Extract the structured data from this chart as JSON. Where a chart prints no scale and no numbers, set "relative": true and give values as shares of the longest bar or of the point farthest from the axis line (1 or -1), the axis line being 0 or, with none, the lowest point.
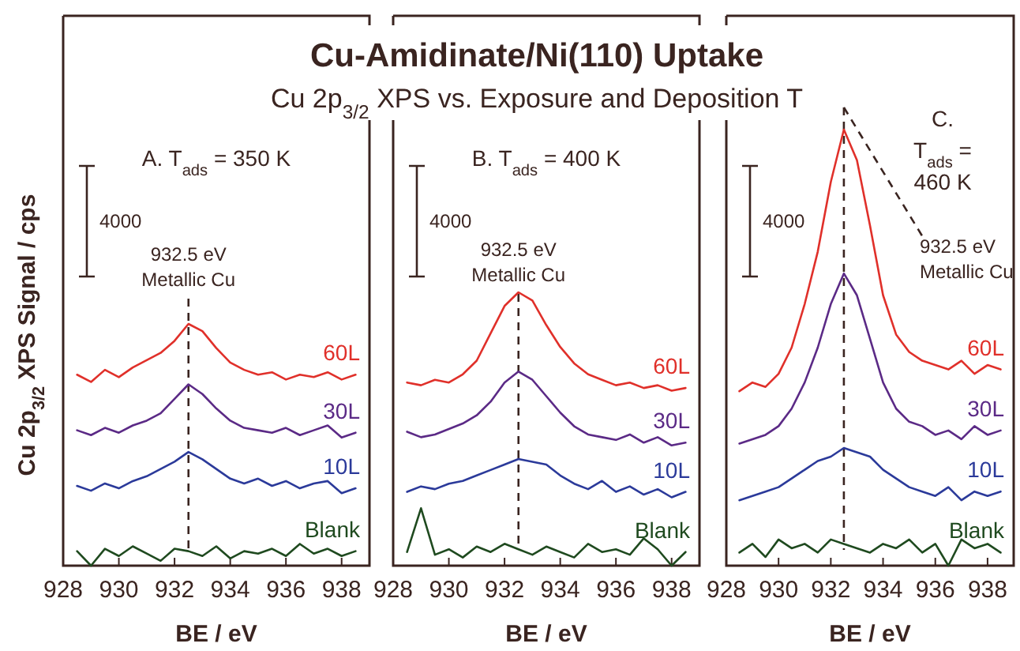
{
  "chart_data": [
    {
      "type": "other",
      "title": "Cu-Amidinate/Ni(110) Uptake",
      "subtitle": "Cu 2p$_{3/2}$ XPS vs. Exposure and Deposition T"
    },
    {
      "type": "line",
      "ylabel": "Cu 2p$_{3/2}$ XPS Signal / cps",
      "xlabel": "BE / eV",
      "relative": true,
      "legend": false,
      "xlim": [
        928,
        939
      ],
      "xticks": [
        928,
        930,
        932,
        934,
        936,
        938
      ],
      "x": [
        928.5,
        929,
        929.5,
        930,
        930.5,
        931,
        931.5,
        932,
        932.5,
        933,
        933.5,
        934,
        934.5,
        935,
        935.5,
        936,
        936.5,
        937,
        937.5,
        938,
        938.5
      ],
      "series": [
        {
          "name": "60L",
          "color": "#e0302a",
          "values": [
            0.79,
            0.76,
            0.81,
            0.78,
            0.82,
            0.85,
            0.88,
            0.93,
            1.0,
            0.97,
            0.9,
            0.84,
            0.81,
            0.79,
            0.8,
            0.77,
            0.79,
            0.78,
            0.8,
            0.77,
            0.79
          ]
        },
        {
          "name": "30L",
          "color": "#5b2a86",
          "values": [
            0.56,
            0.54,
            0.57,
            0.55,
            0.58,
            0.6,
            0.63,
            0.69,
            0.75,
            0.71,
            0.65,
            0.6,
            0.57,
            0.56,
            0.55,
            0.57,
            0.54,
            0.56,
            0.58,
            0.53,
            0.55
          ]
        },
        {
          "name": "10L",
          "color": "#2b3a9a",
          "values": [
            0.33,
            0.31,
            0.34,
            0.32,
            0.35,
            0.37,
            0.4,
            0.43,
            0.47,
            0.44,
            0.4,
            0.36,
            0.34,
            0.36,
            0.33,
            0.35,
            0.32,
            0.34,
            0.35,
            0.3,
            0.32
          ]
        },
        {
          "name": "Blank",
          "color": "#1f4a1f",
          "values": [
            0.06,
            0.0,
            0.07,
            0.04,
            0.08,
            0.05,
            0.02,
            0.07,
            0.06,
            0.04,
            0.08,
            0.03,
            0.06,
            0.05,
            0.07,
            0.04,
            0.09,
            0.05,
            0.07,
            0.04,
            0.06
          ]
        }
      ],
      "ref_lines": [
        {
          "axis": "x",
          "value": 932.5,
          "label": "932.5 eV\nMetallic Cu",
          "line_style": "dashed"
        }
      ],
      "annotations": [
        "A. T$_{ads}$ = 350 K",
        "4000"
      ]
    },
    {
      "type": "line",
      "xlabel": "BE / eV",
      "relative": true,
      "legend": false,
      "xlim": [
        928,
        939
      ],
      "xticks": [
        928,
        930,
        932,
        934,
        936,
        938
      ],
      "x": [
        928.5,
        929,
        929.5,
        930,
        930.5,
        931,
        931.5,
        932,
        932.5,
        933,
        933.5,
        934,
        934.5,
        935,
        935.5,
        936,
        936.5,
        937,
        937.5,
        938,
        938.5
      ],
      "series": [
        {
          "name": "60L",
          "color": "#e0302a",
          "values": [
            0.67,
            0.66,
            0.68,
            0.67,
            0.7,
            0.75,
            0.85,
            0.95,
            1.0,
            0.97,
            0.88,
            0.8,
            0.74,
            0.7,
            0.68,
            0.66,
            0.67,
            0.65,
            0.66,
            0.64,
            0.65
          ]
        },
        {
          "name": "30L",
          "color": "#5b2a86",
          "values": [
            0.49,
            0.47,
            0.48,
            0.5,
            0.52,
            0.55,
            0.6,
            0.67,
            0.71,
            0.68,
            0.62,
            0.56,
            0.51,
            0.48,
            0.47,
            0.46,
            0.48,
            0.45,
            0.47,
            0.44,
            0.45
          ]
        },
        {
          "name": "10L",
          "color": "#2b3a9a",
          "values": [
            0.27,
            0.29,
            0.28,
            0.3,
            0.31,
            0.33,
            0.35,
            0.37,
            0.39,
            0.38,
            0.37,
            0.33,
            0.3,
            0.28,
            0.31,
            0.27,
            0.29,
            0.26,
            0.28,
            0.25,
            0.27
          ]
        },
        {
          "name": "Blank",
          "color": "#1f4a1f",
          "values": [
            0.05,
            0.21,
            0.04,
            0.06,
            0.03,
            0.07,
            0.05,
            0.08,
            0.06,
            0.04,
            0.07,
            0.05,
            0.03,
            0.08,
            0.05,
            0.06,
            0.04,
            0.1,
            0.06,
            0.0,
            0.05
          ]
        }
      ],
      "ref_lines": [
        {
          "axis": "x",
          "value": 932.5,
          "label": "932.5 eV\nMetallic Cu",
          "line_style": "dashed"
        }
      ],
      "annotations": [
        "B. T$_{ads}$ = 400 K",
        "4000"
      ]
    },
    {
      "type": "line",
      "xlabel": "BE / eV",
      "relative": true,
      "legend": false,
      "xlim": [
        928,
        939
      ],
      "xticks": [
        928,
        930,
        932,
        934,
        936,
        938
      ],
      "x": [
        928.5,
        929,
        929.5,
        930,
        930.5,
        931,
        931.5,
        932,
        932.5,
        933,
        933.5,
        934,
        934.5,
        935,
        935.5,
        936,
        936.5,
        937,
        937.5,
        938,
        938.5
      ],
      "series": [
        {
          "name": "60L",
          "color": "#e0302a",
          "values": [
            0.4,
            0.42,
            0.41,
            0.44,
            0.5,
            0.6,
            0.72,
            0.88,
            1.0,
            0.93,
            0.78,
            0.62,
            0.53,
            0.49,
            0.47,
            0.46,
            0.45,
            0.47,
            0.44,
            0.46,
            0.45
          ]
        },
        {
          "name": "30L",
          "color": "#5b2a86",
          "values": [
            0.28,
            0.29,
            0.3,
            0.32,
            0.36,
            0.42,
            0.5,
            0.6,
            0.67,
            0.62,
            0.52,
            0.42,
            0.36,
            0.33,
            0.32,
            0.3,
            0.31,
            0.29,
            0.32,
            0.3,
            0.31
          ]
        },
        {
          "name": "10L",
          "color": "#2b3a9a",
          "values": [
            0.15,
            0.16,
            0.17,
            0.18,
            0.2,
            0.22,
            0.24,
            0.25,
            0.27,
            0.26,
            0.25,
            0.22,
            0.2,
            0.18,
            0.17,
            0.16,
            0.18,
            0.15,
            0.17,
            0.16,
            0.17
          ]
        },
        {
          "name": "Blank",
          "color": "#1f4a1f",
          "values": [
            0.03,
            0.05,
            0.02,
            0.06,
            0.04,
            0.05,
            0.03,
            0.06,
            0.05,
            0.04,
            0.03,
            0.05,
            0.04,
            0.06,
            0.03,
            0.05,
            0.0,
            0.06,
            0.04,
            0.05,
            0.03
          ]
        }
      ],
      "ref_lines": [
        {
          "axis": "x",
          "value": 932.5,
          "label": "932.5 eV\nMetallic Cu",
          "line_style": "dashed"
        }
      ],
      "annotations": [
        "C.\nT$_{ads}$ =\n460 K",
        "4000"
      ]
    }
  ]
}
